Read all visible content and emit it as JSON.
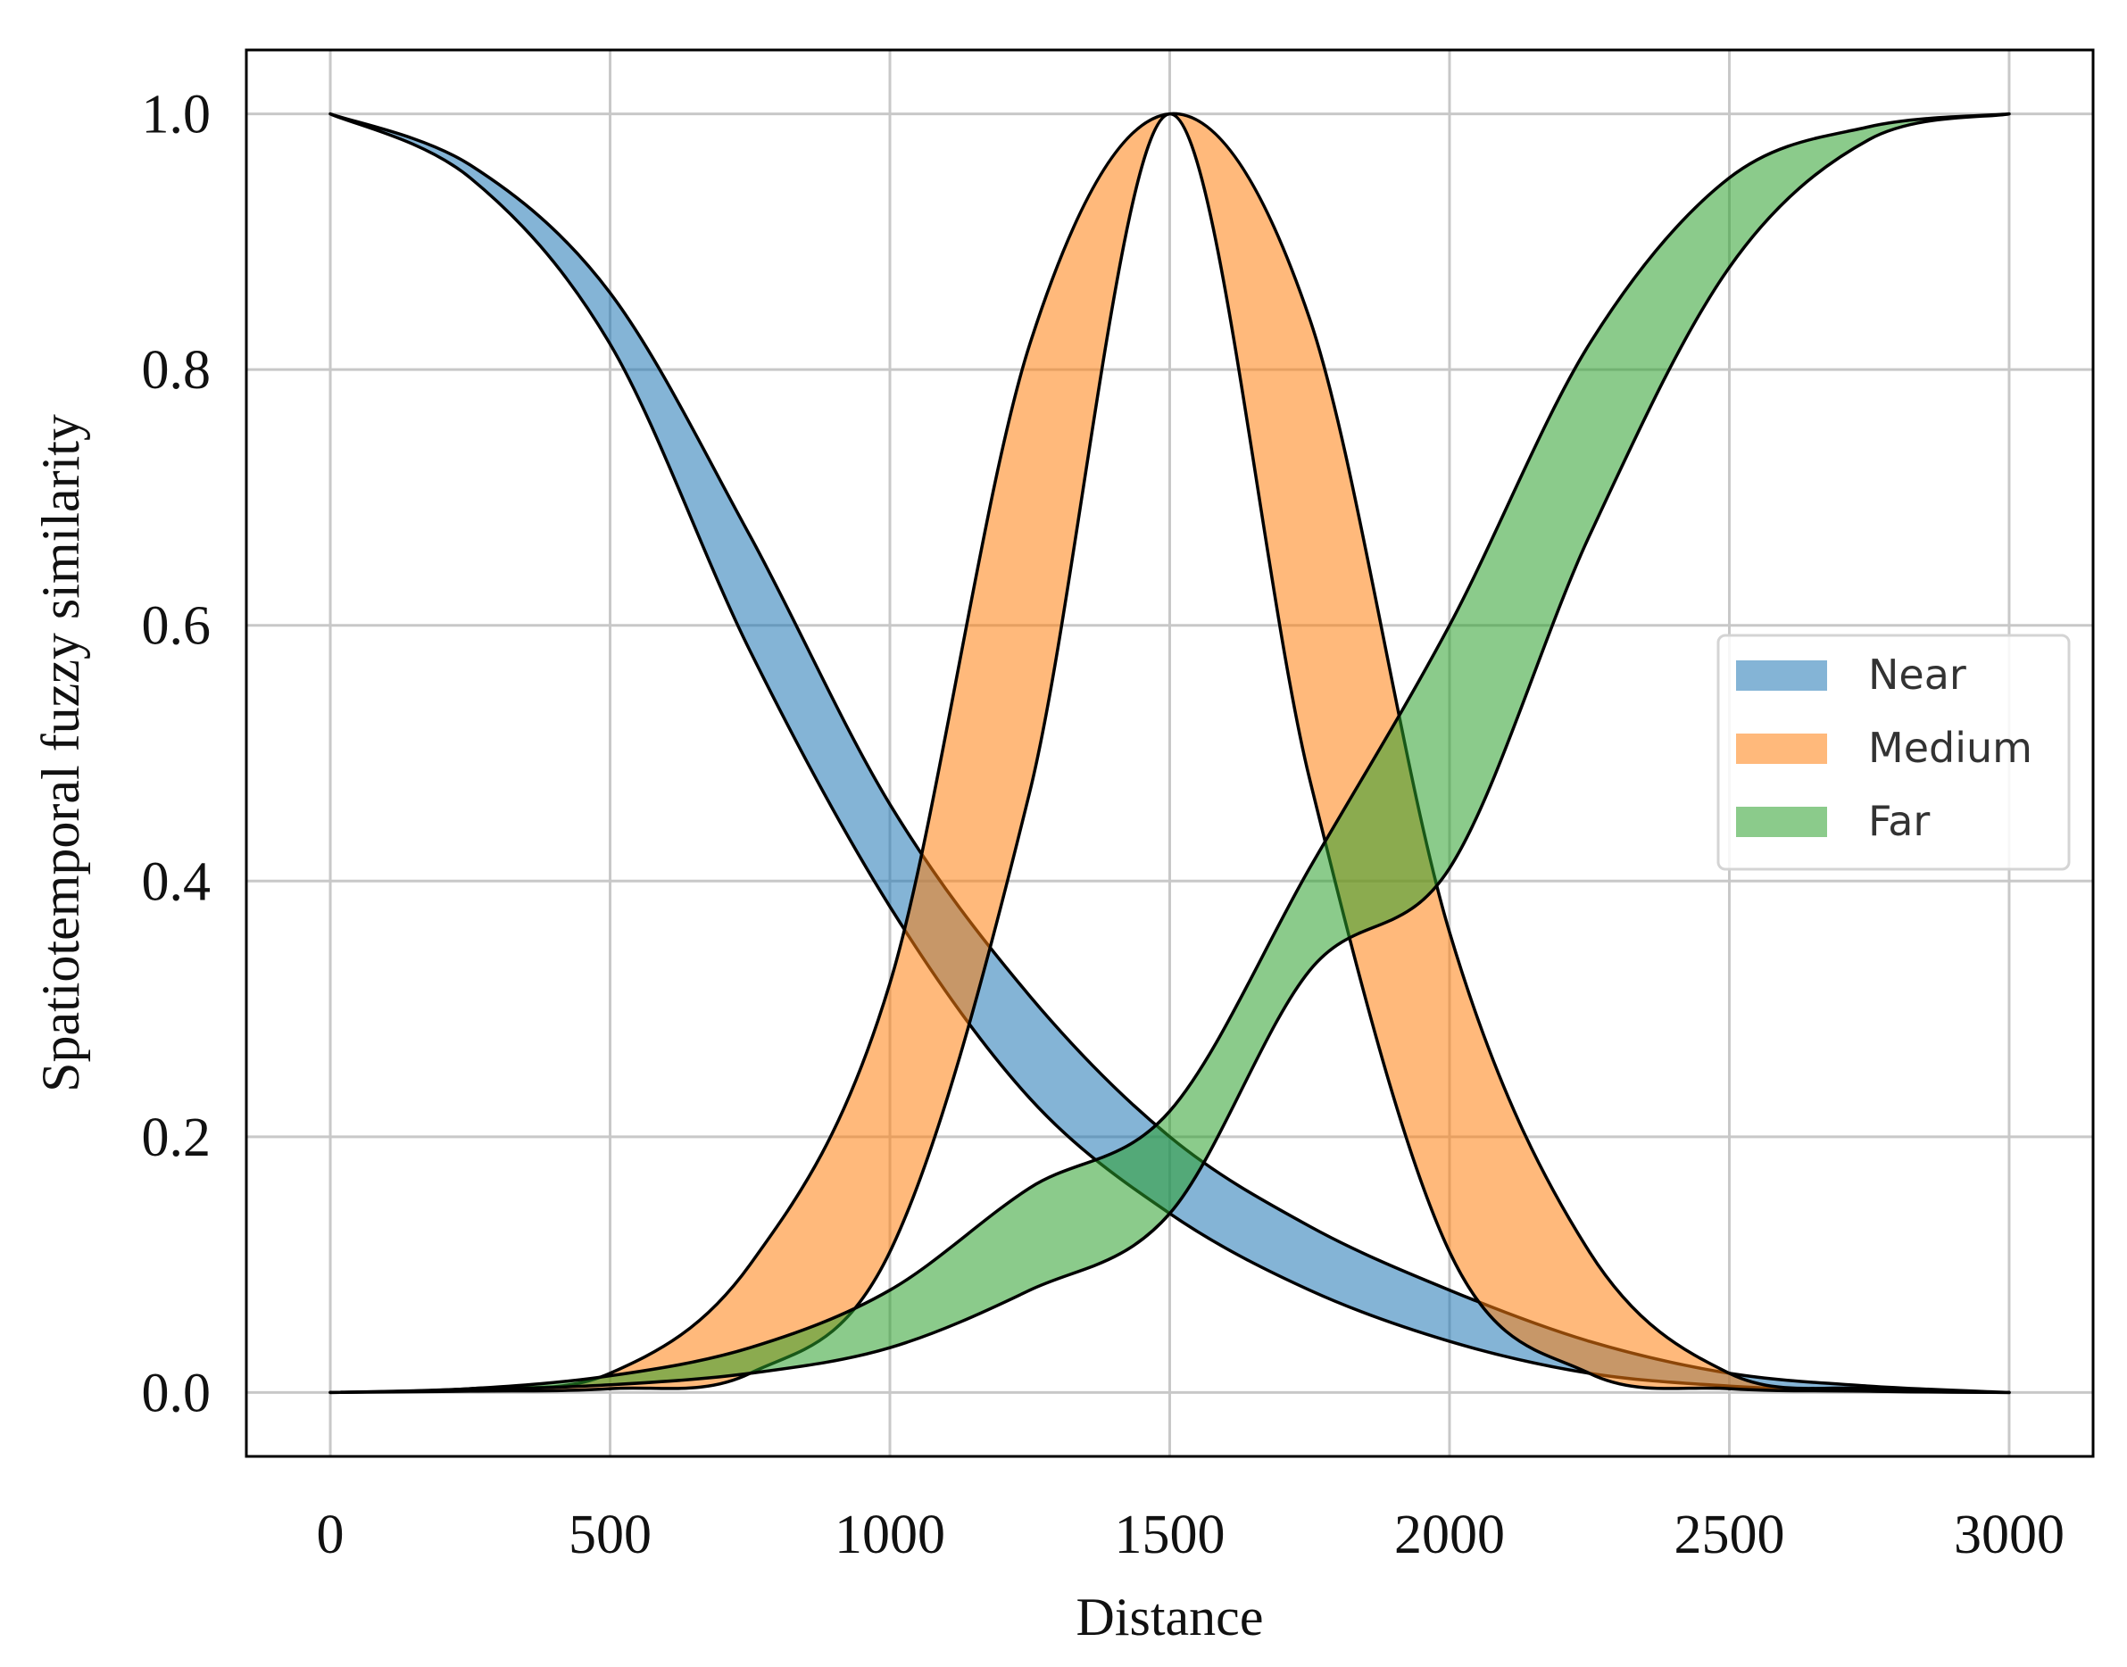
{
  "chart_data": {
    "type": "area",
    "xlabel": "Distance",
    "ylabel": "Spatiotemporal fuzzy similarity",
    "xlim": [
      -150,
      3150
    ],
    "ylim": [
      -0.05,
      1.05
    ],
    "xticks": [
      0,
      500,
      1000,
      1500,
      2000,
      2500,
      3000
    ],
    "xtick_labels": [
      "0",
      "500",
      "1000",
      "1500",
      "2000",
      "2500",
      "3000"
    ],
    "yticks": [
      0.0,
      0.2,
      0.4,
      0.6,
      0.8,
      1.0
    ],
    "ytick_labels": [
      "0.0",
      "0.2",
      "0.4",
      "0.6",
      "0.8",
      "1.0"
    ],
    "grid": true,
    "legend_position": "center-right",
    "x": [
      0,
      250,
      500,
      750,
      1000,
      1250,
      1500,
      1750,
      2000,
      2250,
      2500,
      2750,
      3000
    ],
    "series": [
      {
        "name": "Near",
        "color": "#1f77b4",
        "upper": [
          1.0,
          0.96,
          0.86,
          0.67,
          0.46,
          0.31,
          0.2,
          0.13,
          0.08,
          0.04,
          0.015,
          0.005,
          0.0
        ],
        "lower": [
          1.0,
          0.95,
          0.82,
          0.58,
          0.38,
          0.23,
          0.14,
          0.08,
          0.04,
          0.015,
          0.005,
          0.001,
          0.0
        ]
      },
      {
        "name": "Medium",
        "color": "#ff7f0e",
        "upper": [
          0.0,
          0.003,
          0.015,
          0.1,
          0.32,
          0.82,
          1.0,
          0.84,
          0.36,
          0.11,
          0.015,
          0.003,
          0.0
        ],
        "lower": [
          0.0,
          0.001,
          0.003,
          0.015,
          0.11,
          0.47,
          1.0,
          0.48,
          0.11,
          0.015,
          0.003,
          0.001,
          0.0
        ]
      },
      {
        "name": "Far",
        "color": "#2ca02c",
        "upper": [
          0.0,
          0.003,
          0.013,
          0.035,
          0.08,
          0.16,
          0.22,
          0.41,
          0.6,
          0.82,
          0.95,
          0.99,
          1.0
        ],
        "lower": [
          0.0,
          0.002,
          0.006,
          0.015,
          0.035,
          0.08,
          0.14,
          0.33,
          0.41,
          0.67,
          0.88,
          0.98,
          1.0
        ]
      }
    ]
  }
}
